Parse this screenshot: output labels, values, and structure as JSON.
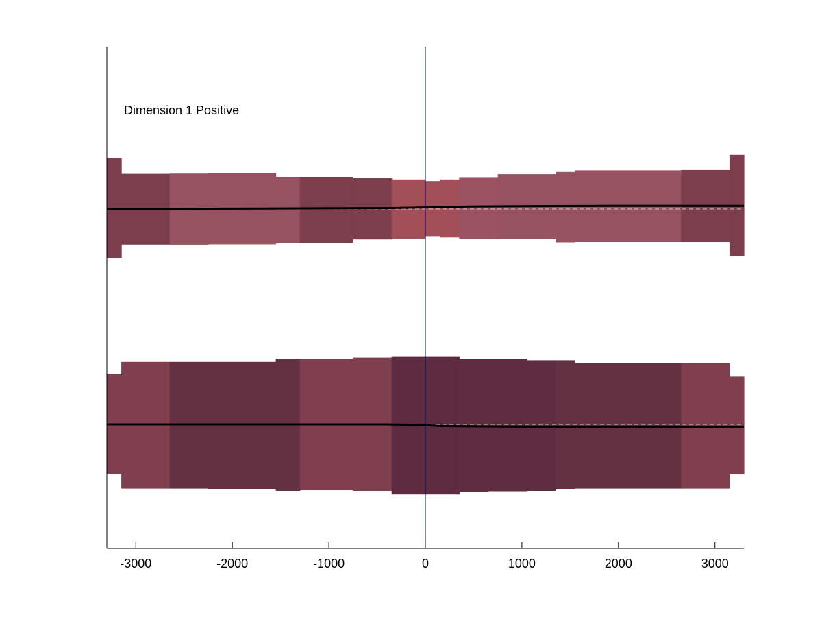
{
  "chart_data": {
    "type": "area",
    "title": "",
    "xlabel": "",
    "ylabel": "",
    "xlim": [
      -3300,
      3300
    ],
    "xticks": [
      -3000,
      -2000,
      -1000,
      0,
      1000,
      2000,
      3000
    ],
    "x_tick_labels": [
      "-3000",
      "-2000",
      "-1000",
      "0",
      "1000",
      "2000",
      "3000"
    ],
    "annotation": "Dimension 1 Positive",
    "reference_line_x": 0,
    "reference_line_color": "#00008b",
    "grid": false,
    "band_groups": [
      {
        "group": "upper",
        "center_line": {
          "x": [
            -3300,
            -2650,
            -2250,
            -1300,
            -400,
            0,
            150,
            450,
            1000,
            2000,
            2650,
            3300
          ],
          "y": [
            0.0,
            0.0,
            0.01,
            0.02,
            0.03,
            0.05,
            0.06,
            0.08,
            0.09,
            0.1,
            0.1,
            0.1
          ]
        },
        "segments": [
          {
            "x0": -3300,
            "x1": -3150,
            "upper": 1.55,
            "lower": -1.5,
            "color": "#7c3d4c"
          },
          {
            "x0": -3150,
            "x1": -2650,
            "upper": 1.07,
            "lower": -1.08,
            "color": "#7c3d4c"
          },
          {
            "x0": -2650,
            "x1": -2250,
            "upper": 1.08,
            "lower": -1.08,
            "color": "#965260"
          },
          {
            "x0": -2250,
            "x1": -1550,
            "upper": 1.09,
            "lower": -1.07,
            "color": "#965260"
          },
          {
            "x0": -1550,
            "x1": -1300,
            "upper": 0.98,
            "lower": -1.03,
            "color": "#965260"
          },
          {
            "x0": -1300,
            "x1": -750,
            "upper": 0.98,
            "lower": -1.02,
            "color": "#7c3d4c"
          },
          {
            "x0": -750,
            "x1": -350,
            "upper": 0.94,
            "lower": -0.92,
            "color": "#7c3d4c"
          },
          {
            "x0": -350,
            "x1": 0,
            "upper": 0.9,
            "lower": -0.9,
            "color": "#a24f5a"
          },
          {
            "x0": 0,
            "x1": 150,
            "upper": 0.85,
            "lower": -0.82,
            "color": "#a24f5a"
          },
          {
            "x0": 150,
            "x1": 350,
            "upper": 0.9,
            "lower": -0.86,
            "color": "#a24f5a"
          },
          {
            "x0": 350,
            "x1": 750,
            "upper": 0.97,
            "lower": -0.91,
            "color": "#9b5361"
          },
          {
            "x0": 750,
            "x1": 1350,
            "upper": 1.06,
            "lower": -0.91,
            "color": "#965260"
          },
          {
            "x0": 1350,
            "x1": 1550,
            "upper": 1.13,
            "lower": -1.01,
            "color": "#965260"
          },
          {
            "x0": 1550,
            "x1": 2650,
            "upper": 1.18,
            "lower": -1.0,
            "color": "#965260"
          },
          {
            "x0": 2650,
            "x1": 3150,
            "upper": 1.19,
            "lower": -1.0,
            "color": "#7c3d4c"
          },
          {
            "x0": 3150,
            "x1": 3300,
            "upper": 1.65,
            "lower": -1.43,
            "color": "#7c3d4c"
          }
        ]
      },
      {
        "group": "lower",
        "center_line": {
          "x": [
            -3300,
            -2650,
            -2250,
            -1300,
            -400,
            0,
            150,
            450,
            1000,
            2000,
            2650,
            3300
          ],
          "y": [
            0.0,
            0.0,
            0.0,
            0.0,
            0.0,
            -0.02,
            -0.05,
            -0.06,
            -0.07,
            -0.07,
            -0.07,
            -0.07
          ]
        },
        "segments": [
          {
            "x0": -3300,
            "x1": -3150,
            "upper": 1.52,
            "lower": -1.52,
            "color": "#7f3f4e"
          },
          {
            "x0": -3150,
            "x1": -2650,
            "upper": 1.9,
            "lower": -1.95,
            "color": "#7f3f4e"
          },
          {
            "x0": -2650,
            "x1": -2250,
            "upper": 1.9,
            "lower": -1.95,
            "color": "#643142"
          },
          {
            "x0": -2250,
            "x1": -1550,
            "upper": 1.9,
            "lower": -1.97,
            "color": "#643142"
          },
          {
            "x0": -1550,
            "x1": -1300,
            "upper": 2.0,
            "lower": -2.02,
            "color": "#643142"
          },
          {
            "x0": -1300,
            "x1": -750,
            "upper": 2.0,
            "lower": -2.0,
            "color": "#7f3f4e"
          },
          {
            "x0": -750,
            "x1": -350,
            "upper": 2.03,
            "lower": -2.02,
            "color": "#7f3f4e"
          },
          {
            "x0": -350,
            "x1": 0,
            "upper": 2.05,
            "lower": -2.13,
            "color": "#5d2a3f"
          },
          {
            "x0": 0,
            "x1": 350,
            "upper": 2.05,
            "lower": -2.13,
            "color": "#5d2a3f"
          },
          {
            "x0": 350,
            "x1": 650,
            "upper": 1.98,
            "lower": -2.05,
            "color": "#602d40"
          },
          {
            "x0": 650,
            "x1": 1050,
            "upper": 1.98,
            "lower": -2.03,
            "color": "#602d40"
          },
          {
            "x0": 1050,
            "x1": 1350,
            "upper": 1.95,
            "lower": -2.02,
            "color": "#602d40"
          },
          {
            "x0": 1350,
            "x1": 1550,
            "upper": 1.95,
            "lower": -1.98,
            "color": "#643142"
          },
          {
            "x0": 1550,
            "x1": 2650,
            "upper": 1.86,
            "lower": -1.95,
            "color": "#643142"
          },
          {
            "x0": 2650,
            "x1": 3150,
            "upper": 1.86,
            "lower": -1.95,
            "color": "#7f3f4e"
          },
          {
            "x0": 3150,
            "x1": 3300,
            "upper": 1.45,
            "lower": -1.52,
            "color": "#7f3f4e"
          }
        ]
      }
    ]
  }
}
